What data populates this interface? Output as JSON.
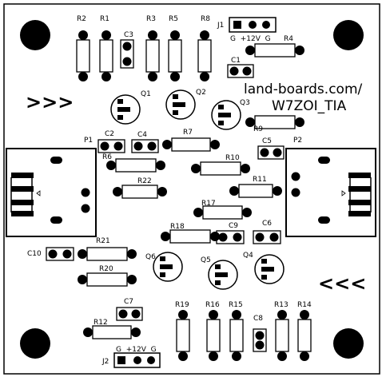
{
  "title_line1": "land-boards.com/",
  "title_line2": "W7ZOI_TIA",
  "arrows_in": ">>>",
  "arrows_out": "<<<",
  "connectors": {
    "j1": {
      "ref": "J1",
      "pins": "G  +12V  G"
    },
    "j2": {
      "ref": "J2",
      "pins": "G  +12V  G"
    },
    "p1": {
      "ref": "P1"
    },
    "p2": {
      "ref": "P2"
    }
  },
  "refs": {
    "r1": "R1",
    "r2": "R2",
    "r3": "R3",
    "r4": "R4",
    "r5": "R5",
    "r6": "R6",
    "r7": "R7",
    "r8": "R8",
    "r9": "R9",
    "r10": "R10",
    "r11": "R11",
    "r12": "R12",
    "r13": "R13",
    "r14": "R14",
    "r15": "R15",
    "r16": "R16",
    "r17": "R17",
    "r18": "R18",
    "r19": "R19",
    "r20": "R20",
    "r21": "R21",
    "r22": "R22",
    "c1": "C1",
    "c2": "C2",
    "c3": "C3",
    "c4": "C4",
    "c5": "C5",
    "c6": "C6",
    "c7": "C7",
    "c8": "C8",
    "c9": "C9",
    "c10": "C10",
    "q1": "Q1",
    "q2": "Q2",
    "q3": "Q3",
    "q4": "Q4",
    "q5": "Q5",
    "q6": "Q6"
  }
}
